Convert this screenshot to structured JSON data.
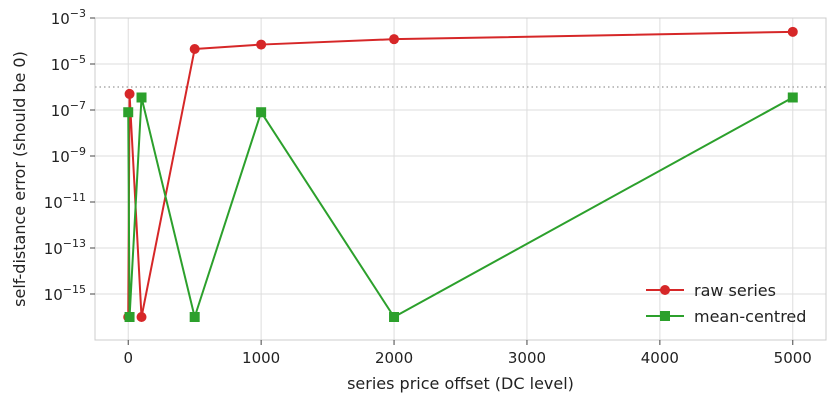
{
  "chart_data": {
    "type": "line",
    "xlabel": "series price offset (DC level)",
    "ylabel": "self-distance error (should be 0)",
    "yscale": "log",
    "xlim": [
      -250,
      5250
    ],
    "ylim_exponent": [
      -17.0,
      -3.0
    ],
    "x_ticks": [
      0,
      1000,
      2000,
      3000,
      4000,
      5000
    ],
    "x_tick_labels": [
      "0",
      "1000",
      "2000",
      "3000",
      "4000",
      "5000"
    ],
    "y_ticks_exponent": [
      -15,
      -13,
      -11,
      -9,
      -7,
      -5,
      -3
    ],
    "y_tick_labels": [
      {
        "base": "10",
        "exp": "−15"
      },
      {
        "base": "10",
        "exp": "−13"
      },
      {
        "base": "10",
        "exp": "−11"
      },
      {
        "base": "10",
        "exp": "−9"
      },
      {
        "base": "10",
        "exp": "−7"
      },
      {
        "base": "10",
        "exp": "−5"
      },
      {
        "base": "10",
        "exp": "−3"
      }
    ],
    "grid": true,
    "legend_position": "bottom-right",
    "reference_line": {
      "y": 1e-06,
      "style": "dotted",
      "color": "#999999"
    },
    "series": [
      {
        "name": "raw series",
        "color": "#d62728",
        "marker": "circle",
        "points": [
          {
            "x": 0,
            "y": 1e-16
          },
          {
            "x": 10,
            "y": 5e-07
          },
          {
            "x": 100,
            "y": 1e-16
          },
          {
            "x": 500,
            "y": 4.5e-05
          },
          {
            "x": 1000,
            "y": 7e-05
          },
          {
            "x": 2000,
            "y": 0.00012
          },
          {
            "x": 5000,
            "y": 0.00025
          }
        ]
      },
      {
        "name": "mean-centred",
        "color": "#2ca02c",
        "marker": "square",
        "points": [
          {
            "x": 0,
            "y": 8e-08
          },
          {
            "x": 10,
            "y": 1e-16
          },
          {
            "x": 100,
            "y": 3.5e-07
          },
          {
            "x": 500,
            "y": 1e-16
          },
          {
            "x": 1000,
            "y": 8e-08
          },
          {
            "x": 2000,
            "y": 1e-16
          },
          {
            "x": 5000,
            "y": 3.5e-07
          }
        ]
      }
    ]
  }
}
